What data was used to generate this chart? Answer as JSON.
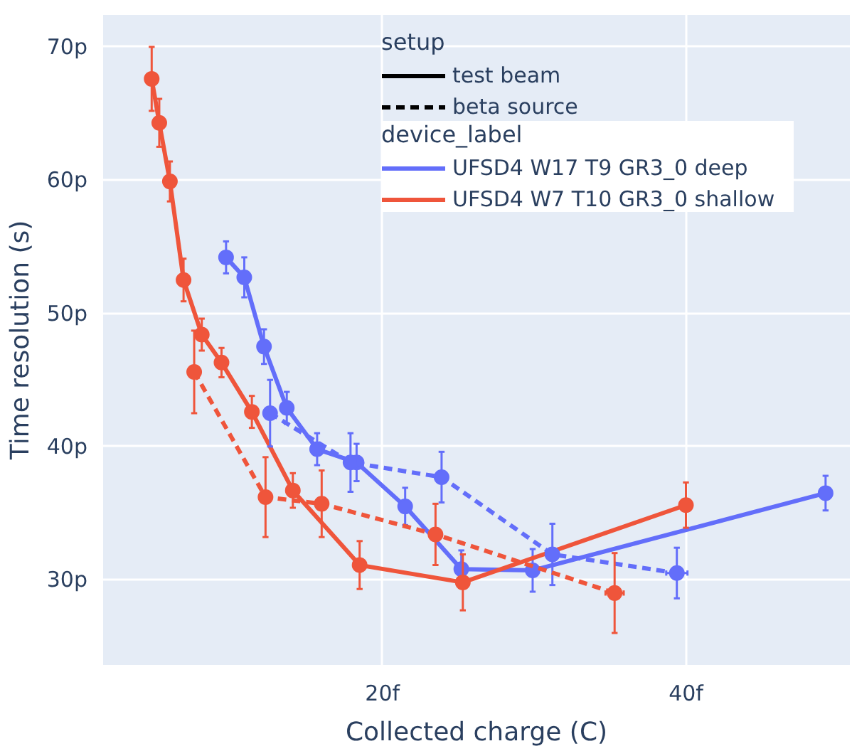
{
  "chart_data": {
    "type": "line",
    "xlabel": "Collected charge (C)",
    "ylabel": "Time resolution (s)",
    "legend_title": [
      "setup",
      "device_label"
    ],
    "xlim": [
      1.6,
      50.8
    ],
    "ylim": [
      23.6,
      72.4
    ],
    "xticks": [
      {
        "value": 20,
        "label": "20f"
      },
      {
        "value": 40,
        "label": "40f"
      }
    ],
    "yticks": [
      {
        "value": 30,
        "label": "30p"
      },
      {
        "value": 40,
        "label": "40p"
      },
      {
        "value": 50,
        "label": "50p"
      },
      {
        "value": 60,
        "label": "60p"
      },
      {
        "value": 70,
        "label": "70p"
      }
    ],
    "grid": true,
    "legend": "top right",
    "marker": "circle",
    "series": [
      {
        "name": "test beam",
        "color": "#000000",
        "line_style": "solid"
      },
      {
        "name": "beta source",
        "color": "#000000",
        "line_style": "dashed"
      },
      {
        "name": "UFSD4 W17 T9 GR3_0 deep",
        "color": "#636efa",
        "line_style": "solid",
        "x": [
          9.7,
          10.9,
          12.2,
          13.7,
          15.7,
          18.3,
          21.5,
          25.2,
          29.9,
          49.2
        ],
        "values": [
          54.2,
          52.7,
          47.5,
          42.9,
          39.8,
          38.8,
          35.5,
          30.8,
          30.7,
          36.5
        ],
        "errors": [
          1.2,
          1.5,
          1.3,
          1.2,
          1.2,
          1.4,
          1.4,
          1.4,
          1.6,
          1.3
        ]
      },
      {
        "name": "UFSD4 W7 T10 GR3_0 shallow",
        "color": "#ef553b",
        "line_style": "solid",
        "x": [
          4.8,
          5.3,
          6.0,
          6.9,
          8.1,
          9.4,
          11.4,
          14.1,
          18.5,
          25.3,
          40.0
        ],
        "values": [
          67.6,
          64.3,
          59.9,
          52.5,
          48.4,
          46.3,
          42.6,
          36.7,
          31.1,
          29.8,
          35.6
        ],
        "errors": [
          2.4,
          1.8,
          1.5,
          1.6,
          1.2,
          1.1,
          1.2,
          1.3,
          1.8,
          2.1,
          1.7
        ]
      },
      {
        "color": "#636efa",
        "line_style": "dashed",
        "x": [
          12.6,
          17.9,
          23.9,
          31.2,
          39.4
        ],
        "values": [
          42.5,
          38.8,
          37.7,
          31.9,
          30.5
        ],
        "errors": [
          2.5,
          2.2,
          1.9,
          2.3,
          1.9
        ],
        "xerrors": [
          null,
          null,
          null,
          null,
          0.7
        ]
      },
      {
        "color": "#ef553b",
        "line_style": "dashed",
        "x": [
          7.6,
          12.3,
          16.0,
          23.5,
          35.3
        ],
        "values": [
          45.6,
          36.2,
          35.7,
          33.4,
          29.0
        ],
        "errors": [
          3.1,
          3.0,
          2.5,
          2.3,
          3.0
        ],
        "xerrors": [
          null,
          null,
          null,
          null,
          0.6
        ]
      }
    ]
  }
}
